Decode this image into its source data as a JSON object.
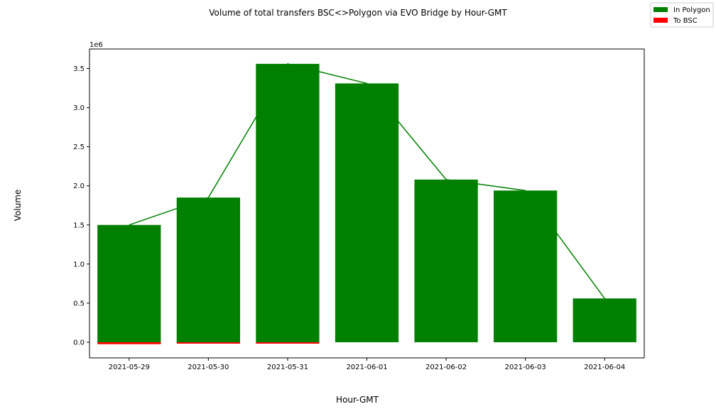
{
  "chart_data": {
    "type": "bar",
    "title": "Volume of total transfers BSC<>Polygon via EVO Bridge by Hour-GMT",
    "xlabel": "Hour-GMT",
    "ylabel": "Volume",
    "y_offset_label": "1e6",
    "y_multiplier": 1000000,
    "ylim": [
      -200000,
      3750000
    ],
    "yticks": [
      0,
      500000,
      1000000,
      1500000,
      2000000,
      2500000,
      3000000,
      3500000
    ],
    "ytick_labels": [
      "0.0",
      "0.5",
      "1.0",
      "1.5",
      "2.0",
      "2.5",
      "3.0",
      "3.5"
    ],
    "grid": false,
    "legend_position": "top-right",
    "categories": [
      "2021-05-29",
      "2021-05-30",
      "2021-05-31",
      "2021-06-01",
      "2021-06-02",
      "2021-06-03",
      "2021-06-04"
    ],
    "series": [
      {
        "name": "In Polygon",
        "color": "#008000",
        "values": [
          1500000,
          1850000,
          3560000,
          3310000,
          2080000,
          1940000,
          560000
        ]
      },
      {
        "name": "To BSC",
        "color": "#ff0000",
        "values": [
          -25000,
          -15000,
          -8000,
          0,
          0,
          0,
          0
        ]
      }
    ],
    "line": {
      "color": "#008000",
      "values": [
        1500000,
        1850000,
        3560000,
        3310000,
        2080000,
        1940000,
        560000
      ]
    }
  }
}
